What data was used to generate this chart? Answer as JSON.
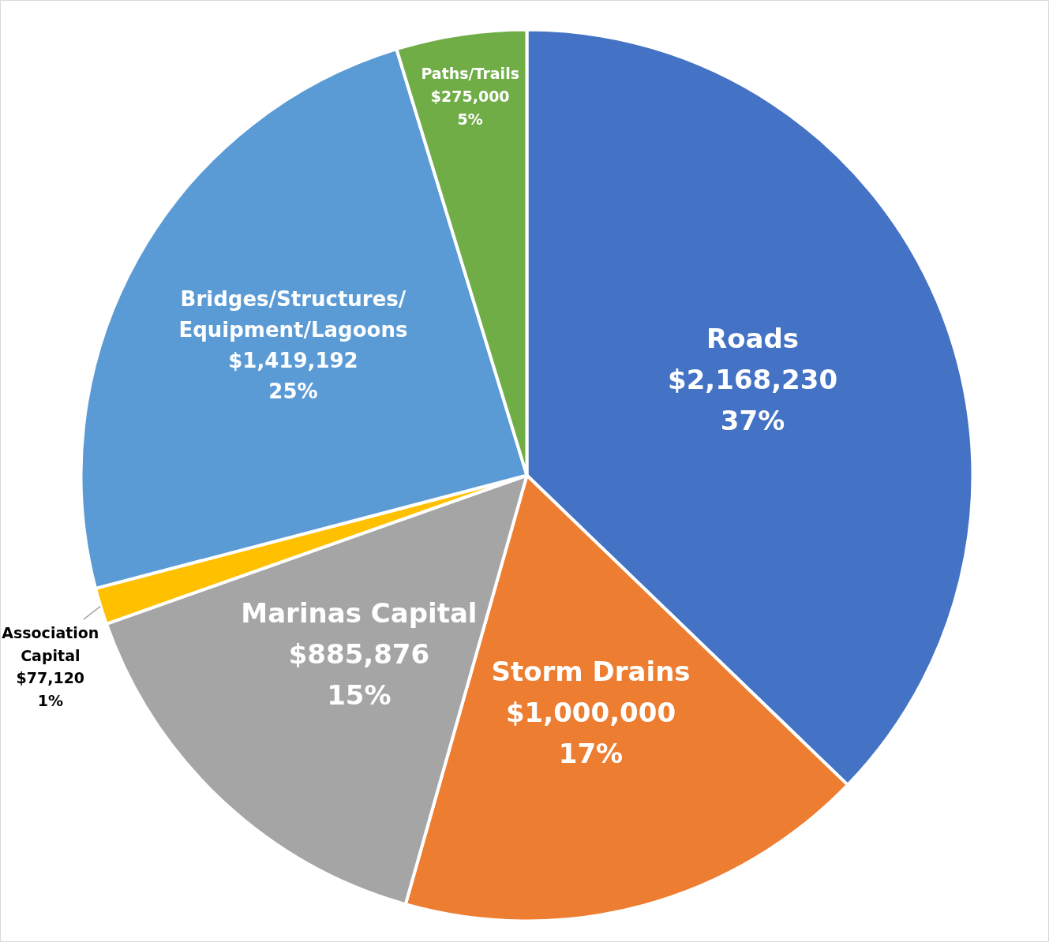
{
  "chart_data": {
    "type": "pie",
    "categories": [
      "Roads",
      "Storm Drains",
      "Marinas Capital",
      "Association Capital",
      "Bridges/Structures/ Equipment/Lagoons",
      "Paths/Trails"
    ],
    "values": [
      2168230,
      1000000,
      885876,
      77120,
      1419192,
      275000
    ],
    "colors": [
      "#4472c4",
      "#ed7d31",
      "#a5a5a5",
      "#ffc000",
      "#5b9bd5",
      "#70ad47"
    ],
    "value_labels": [
      "$2,168,230\n37%",
      "$1,000,000\n17%",
      "$885,876\n15%",
      "$77,120\n1%",
      "$1,419,192\n25%",
      "$275,000\n5%"
    ]
  }
}
